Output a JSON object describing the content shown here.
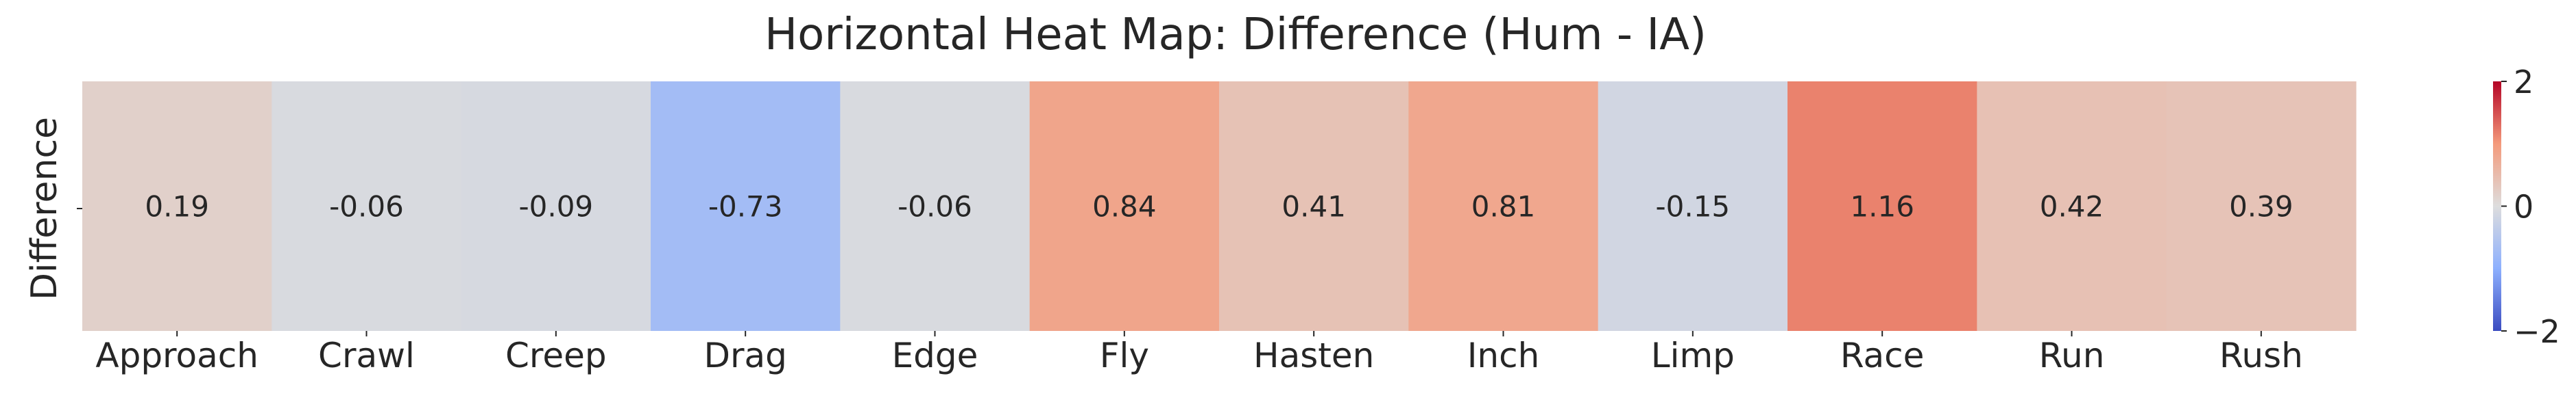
{
  "chart_data": {
    "type": "heatmap",
    "title": "Horizontal Heat Map: Difference (Hum - IA)",
    "xlabel": "",
    "ylabel": "",
    "row_labels": [
      "Difference"
    ],
    "categories": [
      "Approach",
      "Crawl",
      "Creep",
      "Drag",
      "Edge",
      "Fly",
      "Hasten",
      "Inch",
      "Limp",
      "Race",
      "Run",
      "Rush"
    ],
    "values": [
      0.19,
      -0.06,
      -0.09,
      -0.73,
      -0.06,
      0.84,
      0.41,
      0.81,
      -0.15,
      1.16,
      0.42,
      0.39
    ],
    "value_labels": [
      "0.19",
      "-0.06",
      "-0.09",
      "-0.73",
      "-0.06",
      "0.84",
      "0.41",
      "0.81",
      "-0.15",
      "1.16",
      "0.42",
      "0.39"
    ],
    "colormap": "coolwarm",
    "colorbar": {
      "min": -2,
      "max": 2,
      "ticks": [
        2,
        0,
        -2
      ],
      "tick_labels": [
        "2",
        "0",
        "−2"
      ],
      "placement": "right"
    },
    "colors": {
      "low": "#3b4cc0",
      "mid": "#dddddd",
      "high": "#b40426",
      "text_dark": "#262626",
      "text_light": "#ffffff"
    },
    "grid": false
  }
}
